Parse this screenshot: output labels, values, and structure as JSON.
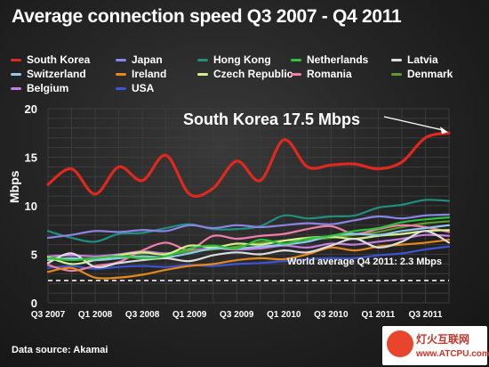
{
  "chart_data": {
    "type": "line",
    "title": "Average connection speed Q3 2007 - Q4 2011",
    "ylabel": "Mbps",
    "xlabel": "",
    "ylim": [
      0,
      20
    ],
    "yticks": [
      0,
      5,
      10,
      15,
      20
    ],
    "grid": true,
    "legend_position": "top",
    "x": [
      "Q3 2007",
      "Q4 2007",
      "Q1 2008",
      "Q2 2008",
      "Q3 2008",
      "Q4 2008",
      "Q1 2009",
      "Q2 2009",
      "Q3 2009",
      "Q4 2009",
      "Q1 2010",
      "Q2 2010",
      "Q3 2010",
      "Q4 2010",
      "Q1 2011",
      "Q2 2011",
      "Q3 2011",
      "Q4 2011"
    ],
    "xtick_labels": [
      "Q3 2007",
      "Q1 2008",
      "Q3 2008",
      "Q1 2009",
      "Q3 2009",
      "Q1 2010",
      "Q3 2010",
      "Q1 2011",
      "Q3 2011"
    ],
    "series": [
      {
        "name": "South Korea",
        "color": "#e0281f",
        "values": [
          12.2,
          13.8,
          11.2,
          14.0,
          12.6,
          15.2,
          11.2,
          11.8,
          14.6,
          12.6,
          16.8,
          14.0,
          14.2,
          14.3,
          13.8,
          14.5,
          17.0,
          17.5
        ]
      },
      {
        "name": "Japan",
        "color": "#8a84e6",
        "values": [
          6.7,
          7.0,
          7.4,
          7.3,
          7.5,
          7.4,
          8.0,
          7.7,
          8.0,
          7.8,
          8.0,
          8.2,
          8.1,
          8.5,
          8.9,
          8.7,
          9.0,
          9.1
        ]
      },
      {
        "name": "Hong Kong",
        "color": "#1f8f7e",
        "values": [
          7.4,
          6.7,
          6.3,
          7.1,
          7.2,
          7.7,
          8.1,
          7.6,
          7.6,
          7.9,
          9.0,
          8.7,
          8.9,
          9.0,
          9.8,
          10.1,
          10.6,
          10.5
        ]
      },
      {
        "name": "Netherlands",
        "color": "#2bc43a",
        "values": [
          4.6,
          4.4,
          4.6,
          4.8,
          4.6,
          4.8,
          5.6,
          5.9,
          5.6,
          6.5,
          6.1,
          6.6,
          6.9,
          7.4,
          7.7,
          8.3,
          8.6,
          8.8
        ]
      },
      {
        "name": "Latvia",
        "color": "#dddddd",
        "values": [
          4.1,
          5.1,
          3.7,
          4.1,
          4.4,
          4.6,
          4.3,
          4.9,
          5.2,
          5.0,
          5.4,
          5.2,
          5.9,
          6.6,
          5.7,
          6.3,
          7.4,
          6.2
        ]
      },
      {
        "name": "Switzerland",
        "color": "#8fc9ee",
        "values": [
          4.4,
          4.6,
          4.4,
          4.6,
          4.8,
          4.7,
          5.1,
          5.6,
          5.6,
          5.8,
          6.0,
          6.3,
          6.9,
          7.1,
          7.0,
          7.4,
          7.7,
          8.0
        ]
      },
      {
        "name": "Ireland",
        "color": "#e8871a",
        "values": [
          3.2,
          3.6,
          2.6,
          2.6,
          2.9,
          3.4,
          3.8,
          4.0,
          4.4,
          4.6,
          4.5,
          5.0,
          5.7,
          5.4,
          5.8,
          6.0,
          6.2,
          6.5
        ]
      },
      {
        "name": "Czech Republic",
        "color": "#d7ef8a",
        "values": [
          4.7,
          4.0,
          4.4,
          4.9,
          5.2,
          5.0,
          5.9,
          5.7,
          6.1,
          6.0,
          6.4,
          6.7,
          6.8,
          6.6,
          6.9,
          7.1,
          7.4,
          7.5
        ]
      },
      {
        "name": "Romania",
        "color": "#f07ea7",
        "values": [
          3.9,
          3.3,
          3.8,
          4.2,
          5.4,
          6.2,
          5.5,
          6.9,
          6.6,
          6.9,
          7.1,
          7.6,
          7.9,
          7.1,
          7.6,
          8.0,
          7.8,
          7.3
        ]
      },
      {
        "name": "Denmark",
        "color": "#5e9b2e",
        "values": [
          4.7,
          4.5,
          4.6,
          4.7,
          5.1,
          5.0,
          5.3,
          5.5,
          5.8,
          6.2,
          6.4,
          6.5,
          6.7,
          7.0,
          7.3,
          7.8,
          8.2,
          8.4
        ]
      },
      {
        "name": "Belgium",
        "color": "#c77ee0",
        "values": [
          4.8,
          4.9,
          4.8,
          5.0,
          5.3,
          5.1,
          5.4,
          5.6,
          5.5,
          5.6,
          5.9,
          5.7,
          6.1,
          6.0,
          6.3,
          6.6,
          7.0,
          6.9
        ]
      },
      {
        "name": "USA",
        "color": "#3a55d6",
        "values": [
          3.6,
          3.8,
          3.5,
          3.7,
          3.8,
          3.7,
          3.9,
          3.8,
          4.0,
          4.1,
          4.3,
          4.5,
          4.6,
          4.6,
          4.9,
          5.1,
          5.5,
          5.8
        ]
      }
    ],
    "annotations": [
      {
        "text": "South Korea 17.5 Mbps",
        "series": "South Korea",
        "point": "Q4 2011"
      },
      {
        "text": "World average Q4 2011: 2.3 Mbps",
        "value": 2.3
      }
    ]
  },
  "source_note": "Data source: Akamai",
  "watermark": {
    "line1": "灯火互联网",
    "line2": "www.ATCPU.com"
  }
}
